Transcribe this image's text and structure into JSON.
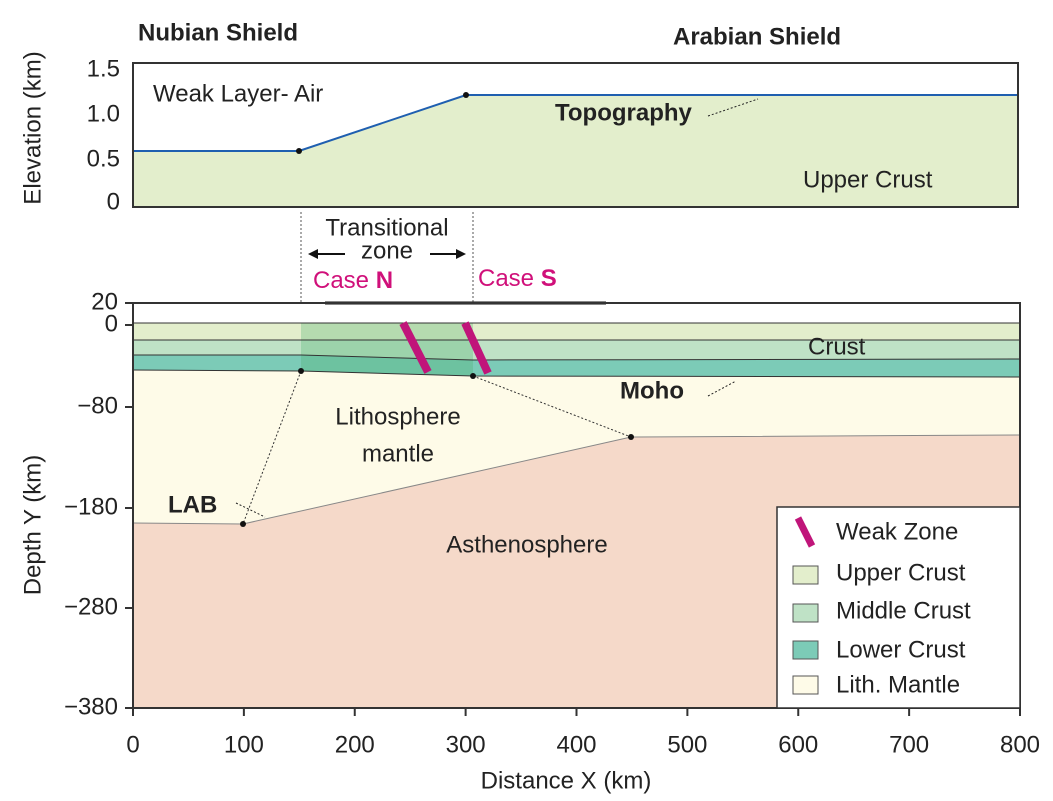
{
  "header": {
    "left": "Nubian Shield",
    "right": "Arabian Shield"
  },
  "top_panel": {
    "y_axis_label": "Elevation (km)",
    "y_ticks": [
      "1.5",
      "1.0",
      "0.5",
      "0"
    ],
    "labels": {
      "air": "Weak Layer- Air",
      "topography": "Topography",
      "upper_crust": "Upper Crust"
    }
  },
  "transition": {
    "line1": "Transitional",
    "line2": "zone",
    "case_n": {
      "prefix": "Case",
      "letter": "N"
    },
    "case_s": {
      "prefix": "Case",
      "letter": "S"
    }
  },
  "bottom_panel": {
    "y_axis_label": "Depth Y (km)",
    "x_axis_label": "Distance X (km)",
    "y_ticks": [
      "20",
      "0",
      "−80",
      "−180",
      "−280",
      "−380"
    ],
    "x_ticks": [
      "0",
      "100",
      "200",
      "300",
      "400",
      "500",
      "600",
      "700",
      "800"
    ],
    "labels": {
      "crust": "Crust",
      "moho": "Moho",
      "lith1": "Lithosphere",
      "lith2": "mantle",
      "lab": "LAB",
      "asthenosphere": "Asthenosphere"
    }
  },
  "legend": [
    "Weak Zone",
    "Upper Crust",
    "Middle Crust",
    "Lower Crust",
    "Lith. Mantle"
  ]
}
